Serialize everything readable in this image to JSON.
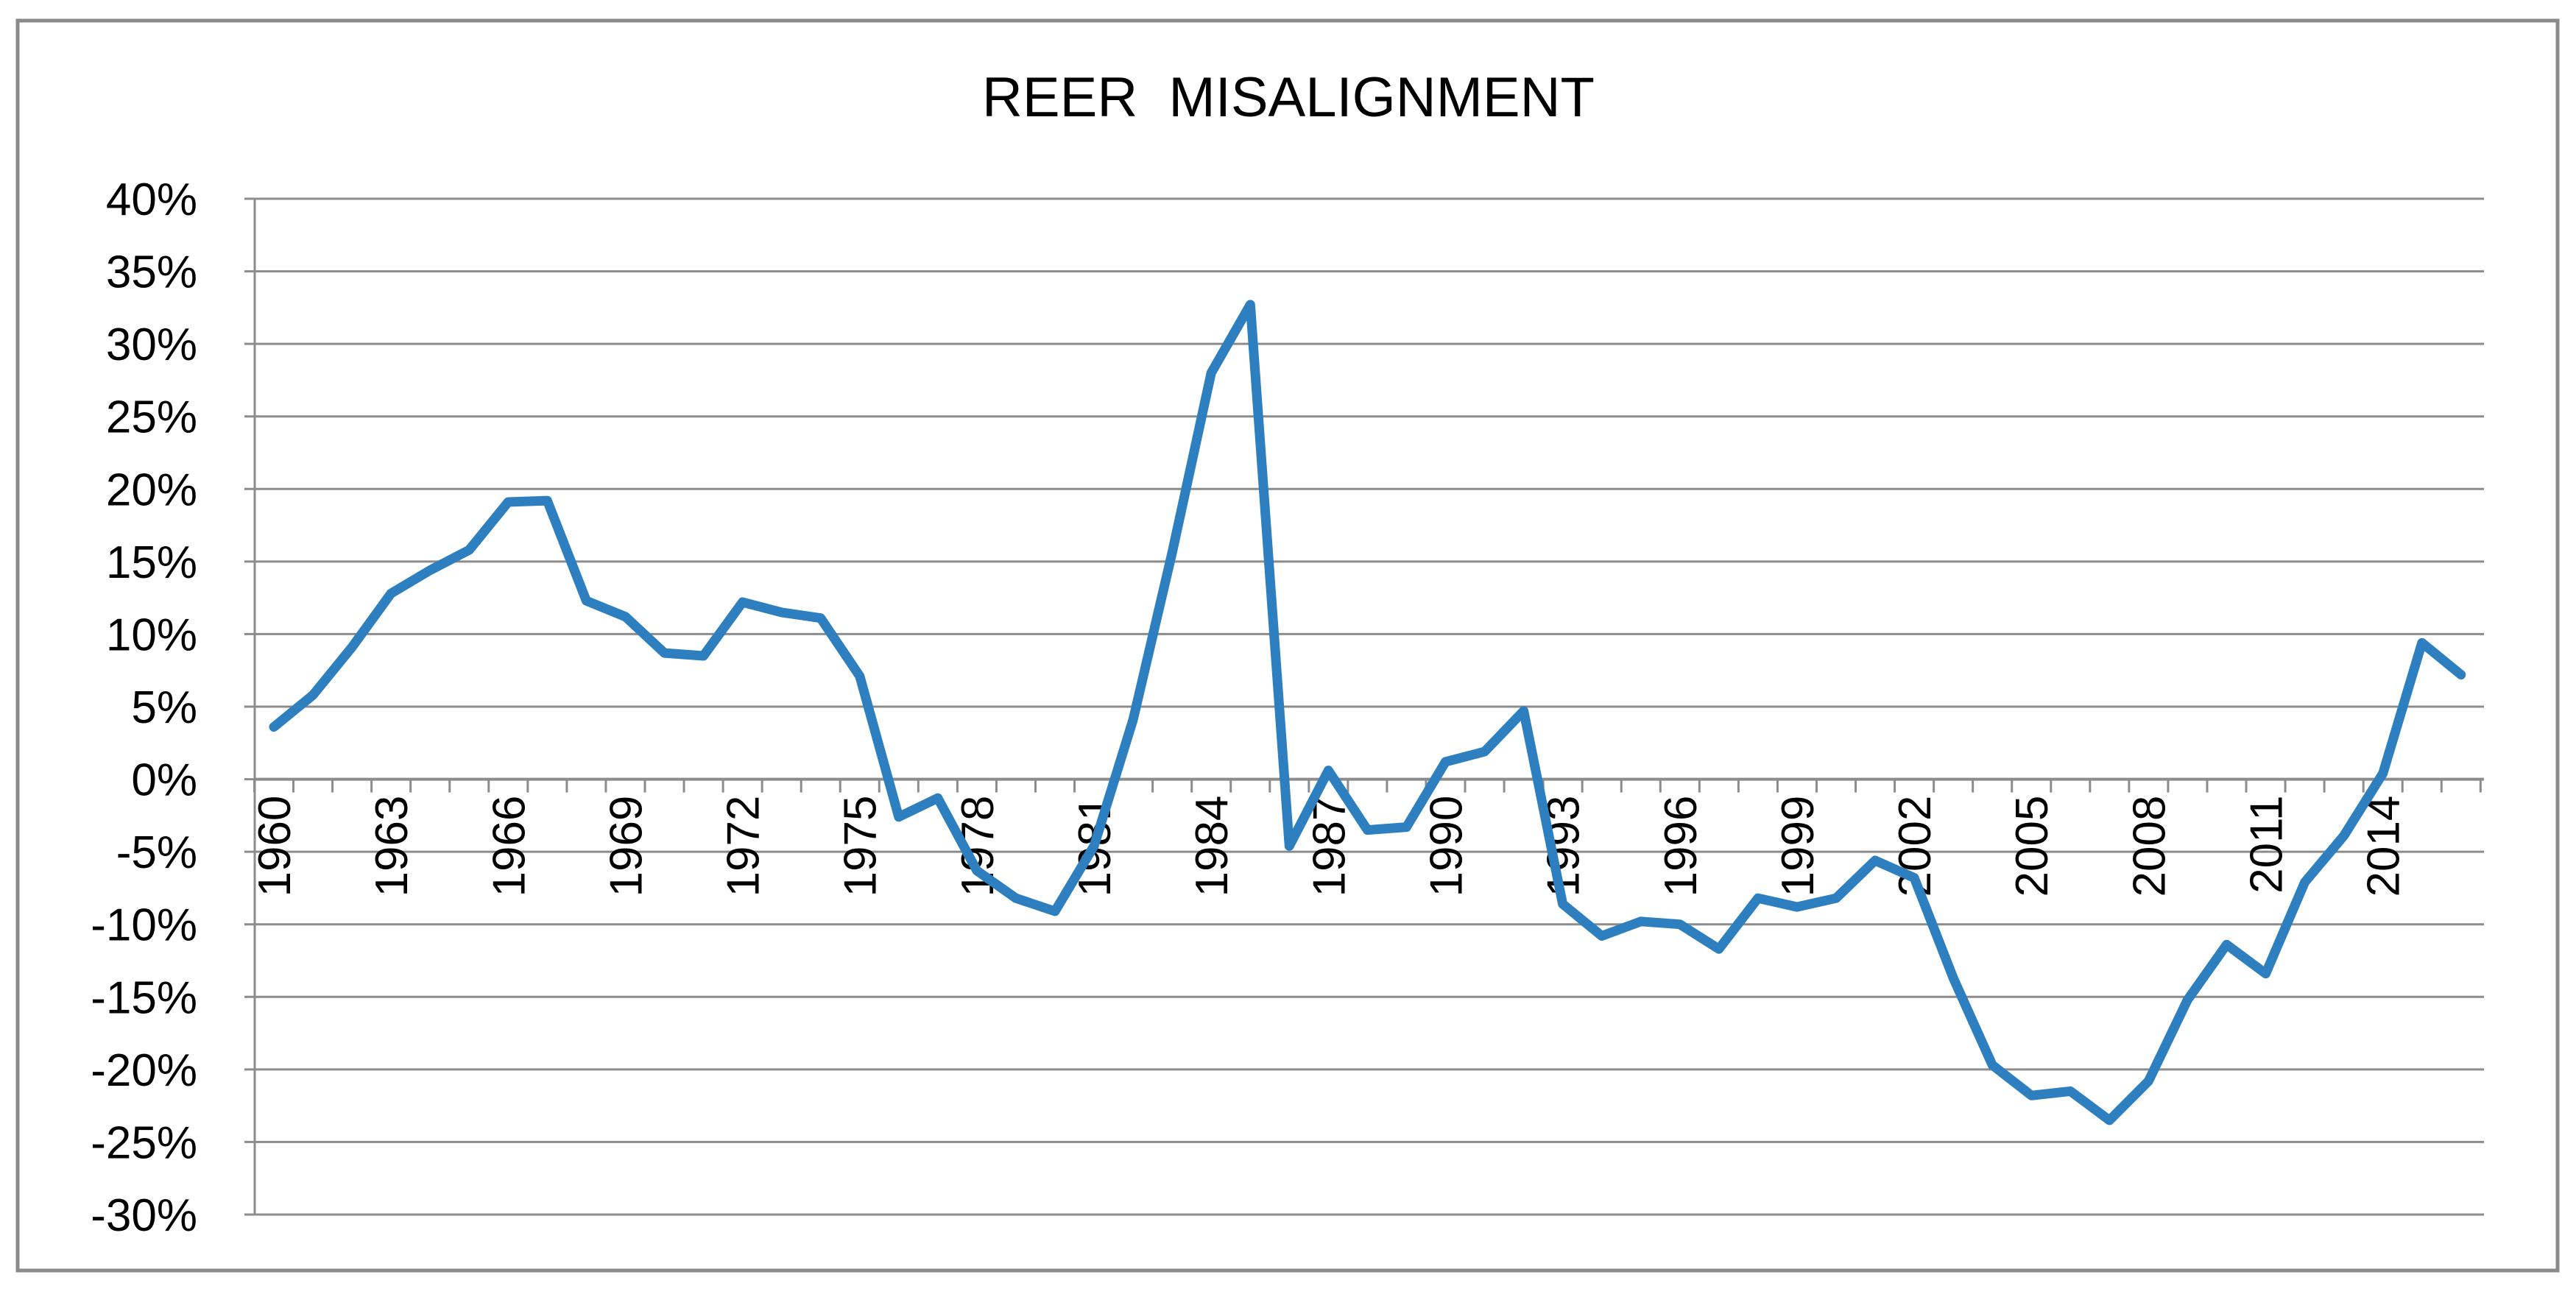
{
  "chart_data": {
    "type": "line",
    "title": "REER  MISALIGNMENT",
    "xlabel": "",
    "ylabel": "",
    "ylim": [
      -30,
      40
    ],
    "y_tick_step": 5,
    "y_tick_format": "percent",
    "x_tick_labels": [
      "1960",
      "1963",
      "1966",
      "1969",
      "1972",
      "1975",
      "1978",
      "1981",
      "1984",
      "1987",
      "1990",
      "1993",
      "1996",
      "1999",
      "2002",
      "2005",
      "2008",
      "2011",
      "2014"
    ],
    "grid": true,
    "legend": "none",
    "line_color": "#2E7FBF",
    "series": [
      {
        "name": "",
        "x": [
          1960,
          1961,
          1962,
          1963,
          1964,
          1965,
          1966,
          1967,
          1968,
          1969,
          1970,
          1971,
          1972,
          1973,
          1974,
          1975,
          1976,
          1977,
          1978,
          1979,
          1980,
          1981,
          1982,
          1983,
          1984,
          1985,
          1986,
          1987,
          1988,
          1989,
          1990,
          1991,
          1992,
          1993,
          1994,
          1995,
          1996,
          1997,
          1998,
          1999,
          2000,
          2001,
          2002,
          2003,
          2004,
          2005,
          2006,
          2007,
          2008,
          2009,
          2010,
          2011,
          2012,
          2013,
          2014,
          2015,
          2016
        ],
        "values": [
          3.6,
          5.8,
          9.1,
          12.8,
          14.4,
          15.8,
          19.1,
          19.2,
          12.3,
          11.2,
          8.7,
          8.5,
          12.2,
          11.5,
          11.1,
          7.1,
          -2.6,
          -1.3,
          -6.3,
          -8.2,
          -9.1,
          -4.6,
          4.1,
          15.6,
          28.0,
          32.7,
          -4.6,
          0.6,
          -3.5,
          -3.3,
          1.2,
          1.9,
          4.7,
          -8.6,
          -10.8,
          -9.8,
          -10.0,
          -11.7,
          -8.2,
          -8.8,
          -8.2,
          -5.6,
          -6.8,
          -13.7,
          -19.7,
          -21.8,
          -21.5,
          -23.5,
          -20.8,
          -15.2,
          -11.4,
          -13.4,
          -7.1,
          -3.9,
          0.4,
          9.4,
          7.2
        ]
      }
    ]
  }
}
